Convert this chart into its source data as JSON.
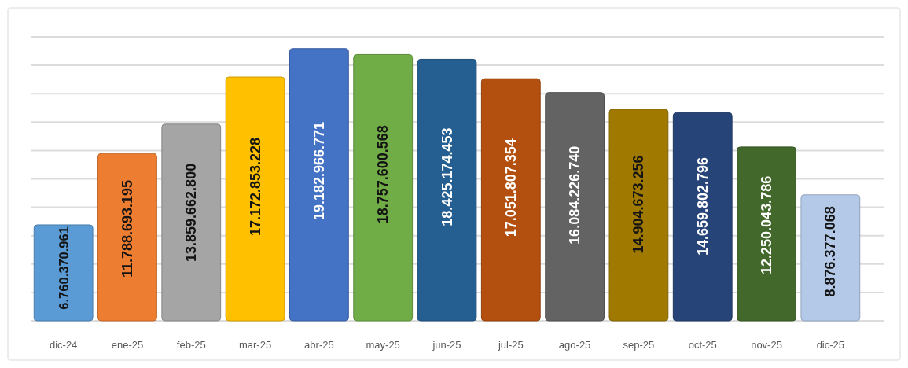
{
  "chart_data": {
    "type": "bar",
    "categories": [
      "dic-24",
      "ene-25",
      "feb-25",
      "mar-25",
      "abr-25",
      "may-25",
      "jun-25",
      "jul-25",
      "ago-25",
      "sep-25",
      "oct-25",
      "nov-25",
      "dic-25"
    ],
    "values": [
      6760370961,
      11788693195,
      13859662800,
      17172853228,
      19182966771,
      18757600568,
      18425174453,
      17051807354,
      16084226740,
      14904673256,
      14659802796,
      12250043786,
      8876377068
    ],
    "value_labels": [
      "6.760.370.961",
      "11.788.693.195",
      "13.859.662.800",
      "17.172.853.228",
      "19.182.966.771",
      "18.757.600.568",
      "18.425.174.453",
      "17.051.807.354",
      "16.084.226.740",
      "14.904.673.256",
      "14.659.802.796",
      "12.250.043.786",
      "8.876.377.068"
    ],
    "colors": [
      "#5b9bd5",
      "#ed7d31",
      "#a5a5a5",
      "#ffc000",
      "#4472c4",
      "#70ad47",
      "#255e91",
      "#b4500f",
      "#636363",
      "#a07a00",
      "#264478",
      "#43682b",
      "#b4c9e8"
    ],
    "ylim": [
      0,
      20000000000
    ],
    "yticks": [
      {
        "value": 0,
        "label": null
      },
      {
        "value": 2000000000,
        "label": null
      },
      {
        "value": 4000000000,
        "label": null
      },
      {
        "value": 6000000000,
        "label": null
      },
      {
        "value": 8000000000,
        "label": null
      },
      {
        "value": 10000000000,
        "label": null
      },
      {
        "value": 12000000000,
        "label": null
      },
      {
        "value": 14000000000,
        "label": null
      },
      {
        "value": 16000000000,
        "label": null
      },
      {
        "value": 18000000000,
        "label": null
      },
      {
        "value": 20000000000,
        "label": null
      }
    ],
    "tick_labels": "x",
    "grid": "y"
  }
}
